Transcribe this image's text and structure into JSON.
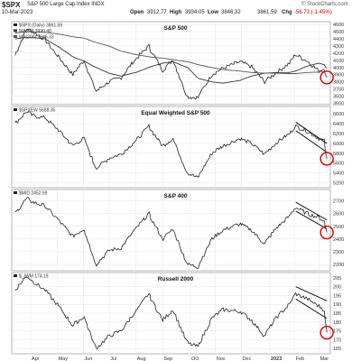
{
  "header": {
    "symbol": "$SPX",
    "description": "S&P 500 Large Cap Index  INDX",
    "date": "10-Mar-2023",
    "open_label": "Open",
    "open_value": "3912.77",
    "high_label": "High",
    "high_value": "3934.05",
    "low_label": "Low",
    "low_value": "3846.32",
    "close_value": "3861.59",
    "chg_label": "Chg",
    "chg_value": "-56.73 (-1.45%)",
    "brand": "© StockCharts.com"
  },
  "colors": {
    "price": "#222222",
    "ma50": "#333333",
    "ma200": "#555555",
    "trendline": "#111111",
    "circle": "#d60000",
    "grid": "#e6e6e6",
    "frame": "#888888"
  },
  "chart_data": [
    {
      "type": "line",
      "title": "S&P 500",
      "legend": [
        "$SPX (Daily) 3861.59",
        "MA(50) 3990.48",
        "MA(200) 3946.33"
      ],
      "yticks": [
        3500,
        3600,
        3700,
        3800,
        3900,
        4000,
        4100,
        4200,
        4300,
        4400,
        4500,
        4600
      ],
      "ylim": [
        3480,
        4640
      ],
      "x": [
        "2022-03-14",
        "2022-03-28",
        "2022-04-04",
        "2022-04-18",
        "2022-05-02",
        "2022-05-20",
        "2022-06-02",
        "2022-06-16",
        "2022-07-01",
        "2022-07-15",
        "2022-08-01",
        "2022-08-16",
        "2022-09-01",
        "2022-09-13",
        "2022-09-30",
        "2022-10-12",
        "2022-10-28",
        "2022-11-10",
        "2022-11-30",
        "2022-12-13",
        "2022-12-28",
        "2023-01-10",
        "2023-01-26",
        "2023-02-02",
        "2023-02-16",
        "2023-03-01",
        "2023-03-07",
        "2023-03-10"
      ],
      "series": [
        {
          "values": [
            4170,
            4540,
            4500,
            4390,
            4170,
            3900,
            4100,
            3670,
            3800,
            3860,
            4120,
            4300,
            3960,
            4110,
            3590,
            3580,
            3900,
            3990,
            4080,
            4010,
            3800,
            3920,
            4060,
            4180,
            4090,
            3950,
            3990,
            3861
          ]
        },
        {
          "values": [
            4400,
            4420,
            4420,
            4400,
            4300,
            4150,
            4090,
            4000,
            3920,
            3880,
            3930,
            4000,
            4060,
            4080,
            4000,
            3850,
            3800,
            3780,
            3820,
            3880,
            3920,
            3930,
            3930,
            3950,
            4020,
            4060,
            4040,
            3990
          ]
        },
        {
          "values": [
            4480,
            4500,
            4500,
            4490,
            4470,
            4430,
            4410,
            4350,
            4300,
            4230,
            4180,
            4150,
            4130,
            4110,
            4080,
            4040,
            4000,
            3970,
            3950,
            3930,
            3920,
            3920,
            3915,
            3915,
            3930,
            3935,
            3940,
            3946
          ]
        }
      ],
      "trendlines": [],
      "annotation": "circle"
    },
    {
      "type": "line",
      "title": "Equal Weighted S&P 500",
      "legend": [
        "$SPXEW 5688.35"
      ],
      "yticks": [
        5200,
        5400,
        5600,
        5800,
        6000,
        6200,
        6400,
        6600
      ],
      "ylim": [
        5100,
        6750
      ],
      "x": [
        "2022-03-14",
        "2022-03-28",
        "2022-04-04",
        "2022-04-18",
        "2022-05-02",
        "2022-05-20",
        "2022-06-02",
        "2022-06-16",
        "2022-07-01",
        "2022-07-15",
        "2022-08-01",
        "2022-08-16",
        "2022-09-01",
        "2022-09-13",
        "2022-09-30",
        "2022-10-12",
        "2022-10-28",
        "2022-11-10",
        "2022-11-30",
        "2022-12-13",
        "2022-12-28",
        "2023-01-10",
        "2023-01-26",
        "2023-02-02",
        "2023-02-16",
        "2023-03-01",
        "2023-03-07",
        "2023-03-10"
      ],
      "series": [
        {
          "values": [
            6400,
            6650,
            6560,
            6520,
            6300,
            5950,
            6100,
            5500,
            5700,
            5780,
            6050,
            6350,
            5950,
            6100,
            5400,
            5300,
            5800,
            5950,
            6100,
            6000,
            5780,
            6000,
            6200,
            6350,
            6250,
            6100,
            6050,
            5688
          ]
        }
      ],
      "trendlines": [
        {
          "x0": "2023-02-02",
          "y0": 6430,
          "x1": "2023-03-10",
          "y1": 6000
        },
        {
          "x0": "2023-02-02",
          "y0": 6260,
          "x1": "2023-03-10",
          "y1": 5820
        }
      ],
      "annotation": "circle"
    },
    {
      "type": "line",
      "title": "S&P 400",
      "legend": [
        "$MID 2452.59"
      ],
      "yticks": [
        2200,
        2300,
        2400,
        2500,
        2600,
        2700
      ],
      "ylim": [
        2150,
        2790
      ],
      "x": [
        "2022-03-14",
        "2022-03-28",
        "2022-04-04",
        "2022-04-18",
        "2022-05-02",
        "2022-05-20",
        "2022-06-02",
        "2022-06-16",
        "2022-07-01",
        "2022-07-15",
        "2022-08-01",
        "2022-08-16",
        "2022-09-01",
        "2022-09-13",
        "2022-09-30",
        "2022-10-12",
        "2022-10-28",
        "2022-11-10",
        "2022-11-30",
        "2022-12-13",
        "2022-12-28",
        "2023-01-10",
        "2023-01-26",
        "2023-02-02",
        "2023-02-16",
        "2023-03-01",
        "2023-03-07",
        "2023-03-10"
      ],
      "series": [
        {
          "values": [
            2600,
            2720,
            2690,
            2660,
            2560,
            2420,
            2480,
            2200,
            2310,
            2330,
            2480,
            2600,
            2400,
            2480,
            2200,
            2180,
            2400,
            2470,
            2520,
            2470,
            2360,
            2480,
            2580,
            2650,
            2600,
            2570,
            2540,
            2452
          ]
        }
      ],
      "trendlines": [
        {
          "x0": "2023-02-02",
          "y0": 2690,
          "x1": "2023-03-10",
          "y1": 2550
        },
        {
          "x0": "2023-02-02",
          "y0": 2620,
          "x1": "2023-03-10",
          "y1": 2480
        }
      ],
      "annotation": "circle"
    },
    {
      "type": "line",
      "title": "Russell 2000",
      "legend": [
        "$_IWM 174.19"
      ],
      "yticks": [
        165,
        170,
        175,
        180,
        185,
        190,
        195,
        200,
        205
      ],
      "ylim": [
        162,
        208
      ],
      "x": [
        "2022-03-14",
        "2022-03-28",
        "2022-04-04",
        "2022-04-18",
        "2022-05-02",
        "2022-05-20",
        "2022-06-02",
        "2022-06-16",
        "2022-07-01",
        "2022-07-15",
        "2022-08-01",
        "2022-08-16",
        "2022-09-01",
        "2022-09-13",
        "2022-09-30",
        "2022-10-12",
        "2022-10-28",
        "2022-11-10",
        "2022-11-30",
        "2022-12-13",
        "2022-12-28",
        "2023-01-10",
        "2023-01-26",
        "2023-02-02",
        "2023-02-16",
        "2023-03-01",
        "2023-03-07",
        "2023-03-10"
      ],
      "series": [
        {
          "values": [
            198,
            206,
            203,
            198,
            190,
            178,
            183,
            165,
            172,
            175,
            186,
            196,
            181,
            187,
            168,
            166,
            182,
            187,
            186,
            181,
            172,
            182,
            190,
            196,
            193,
            189,
            187,
            174
          ]
        }
      ],
      "trendlines": [
        {
          "x0": "2023-02-02",
          "y0": 200,
          "x1": "2023-03-10",
          "y1": 192
        },
        {
          "x0": "2023-02-02",
          "y0": 193,
          "x1": "2023-03-10",
          "y1": 182
        }
      ],
      "annotation": "circle"
    }
  ],
  "time_axis": {
    "labels": [
      {
        "text": "Apr",
        "date": "2022-04-01",
        "bold": false
      },
      {
        "text": "May",
        "date": "2022-05-02",
        "bold": false
      },
      {
        "text": "Jun",
        "date": "2022-06-01",
        "bold": false
      },
      {
        "text": "Jul",
        "date": "2022-07-01",
        "bold": false
      },
      {
        "text": "Aug",
        "date": "2022-08-01",
        "bold": false
      },
      {
        "text": "Sep",
        "date": "2022-09-01",
        "bold": false
      },
      {
        "text": "Oct",
        "date": "2022-10-03",
        "bold": false
      },
      {
        "text": "Nov",
        "date": "2022-11-01",
        "bold": false
      },
      {
        "text": "Dec",
        "date": "2022-12-01",
        "bold": false
      },
      {
        "text": "2023",
        "date": "2023-01-03",
        "bold": true
      },
      {
        "text": "Feb",
        "date": "2023-02-01",
        "bold": false
      },
      {
        "text": "Mar",
        "date": "2023-03-01",
        "bold": false
      }
    ]
  }
}
